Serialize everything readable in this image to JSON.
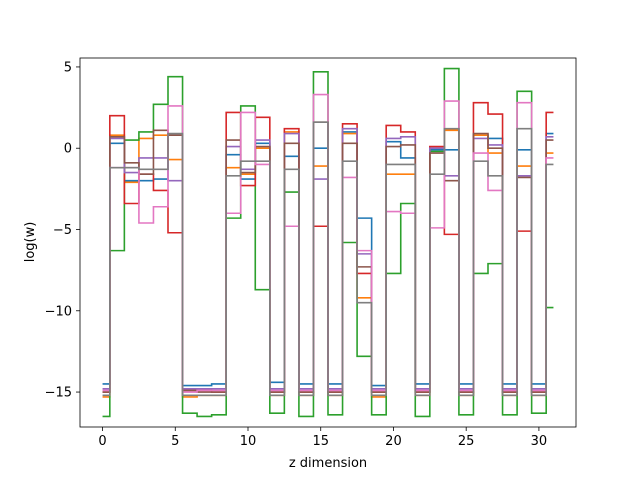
{
  "chart_data": {
    "type": "line",
    "drawstyle": "steps-mid",
    "xlabel": "z dimension",
    "ylabel": "log(w)",
    "xlim": [
      -1.55,
      32.55
    ],
    "ylim": [
      -17.15,
      5.55
    ],
    "xticks": [
      0,
      5,
      10,
      15,
      20,
      25,
      30
    ],
    "xtick_labels": [
      "0",
      "5",
      "10",
      "15",
      "20",
      "25",
      "30"
    ],
    "yticks": [
      5,
      0,
      -5,
      -10,
      -15
    ],
    "ytick_labels": [
      "5",
      "0",
      "−5",
      "−10",
      "−15"
    ],
    "grid": false,
    "x": [
      0,
      1,
      2,
      3,
      4,
      5,
      6,
      7,
      8,
      9,
      10,
      11,
      12,
      13,
      14,
      15,
      16,
      17,
      18,
      19,
      20,
      21,
      22,
      23,
      24,
      25,
      26,
      27,
      28,
      29,
      30,
      31
    ],
    "series": [
      {
        "color": "#1f77b4",
        "values": [
          -14.5,
          0.3,
          -2.0,
          -2.0,
          -1.9,
          0.8,
          -14.6,
          -14.6,
          -14.5,
          -0.4,
          -1.9,
          0.3,
          -14.4,
          -0.5,
          -14.5,
          0.0,
          -14.5,
          1.0,
          -4.3,
          -14.6,
          0.4,
          -0.6,
          -14.5,
          -0.1,
          -0.1,
          -14.5,
          0.8,
          0.6,
          -14.5,
          -0.1,
          -14.5,
          0.9
        ]
      },
      {
        "color": "#ff7f0e",
        "values": [
          -15.3,
          0.8,
          -2.1,
          0.6,
          0.8,
          -0.7,
          -15.3,
          -15.2,
          -15.2,
          -1.2,
          -1.6,
          0.0,
          -15.2,
          1.0,
          -15.2,
          -1.1,
          -15.2,
          0.9,
          -9.2,
          -15.3,
          -1.6,
          -1.6,
          -15.2,
          0.0,
          1.1,
          -15.2,
          0.8,
          -0.3,
          -15.2,
          -1.1,
          -15.2,
          -0.3
        ]
      },
      {
        "color": "#2ca02c",
        "values": [
          -16.5,
          -6.3,
          0.5,
          1.0,
          2.7,
          4.4,
          -16.3,
          -16.5,
          -16.4,
          -4.3,
          2.6,
          -8.7,
          -16.3,
          -2.7,
          -16.5,
          4.7,
          -16.4,
          -5.8,
          -12.8,
          -16.4,
          -7.7,
          -3.4,
          -16.5,
          -0.2,
          4.9,
          -16.4,
          -7.7,
          -7.1,
          -16.4,
          3.5,
          -16.3,
          -9.8
        ]
      },
      {
        "color": "#d62728",
        "values": [
          -15.0,
          2.0,
          -3.4,
          -1.6,
          -2.6,
          -5.2,
          -14.9,
          -14.9,
          -15.0,
          2.2,
          -2.3,
          1.9,
          -15.0,
          1.2,
          -15.0,
          -4.8,
          -15.0,
          1.5,
          -7.7,
          -15.0,
          1.4,
          1.0,
          -15.0,
          0.1,
          -5.3,
          -15.0,
          2.8,
          2.1,
          -15.0,
          -5.1,
          -15.0,
          2.2
        ]
      },
      {
        "color": "#9467bd",
        "values": [
          -14.8,
          0.6,
          -1.5,
          -0.6,
          -0.6,
          -2.0,
          -14.8,
          -14.8,
          -14.8,
          0.1,
          -1.3,
          0.5,
          -14.8,
          0.9,
          -14.8,
          -1.9,
          -14.8,
          1.2,
          -6.5,
          -14.8,
          0.6,
          0.7,
          -14.8,
          0.0,
          -1.7,
          -14.8,
          0.6,
          0.2,
          -14.8,
          -1.7,
          -14.8,
          0.7
        ]
      },
      {
        "color": "#8c564b",
        "values": [
          -15.0,
          0.7,
          -0.9,
          -1.6,
          1.1,
          0.8,
          -14.9,
          -15.0,
          -15.0,
          0.5,
          -1.5,
          0.1,
          -15.0,
          0.3,
          -15.0,
          1.6,
          -15.0,
          0.3,
          -7.3,
          -15.0,
          0.1,
          0.2,
          -15.0,
          -0.3,
          -2.0,
          -15.0,
          0.9,
          0.0,
          -15.0,
          -1.8,
          -15.0,
          0.5
        ]
      },
      {
        "color": "#e377c2",
        "values": [
          -14.9,
          -1.2,
          -1.2,
          -4.6,
          -3.6,
          2.6,
          -15.0,
          -14.9,
          -14.9,
          -4.0,
          2.2,
          -1.0,
          -14.9,
          -4.8,
          -14.9,
          3.3,
          -14.9,
          -1.8,
          -6.3,
          -14.9,
          -3.9,
          -4.0,
          -14.9,
          -4.9,
          2.9,
          -14.9,
          -0.3,
          -2.6,
          -14.9,
          2.8,
          -14.9,
          -0.6
        ]
      },
      {
        "color": "#7f7f7f",
        "values": [
          -15.2,
          -1.2,
          -1.2,
          -1.3,
          -1.3,
          0.9,
          -15.2,
          -15.2,
          -15.2,
          -1.7,
          -0.8,
          -0.8,
          -15.2,
          -1.3,
          -15.2,
          1.6,
          -15.2,
          -0.8,
          -9.5,
          -15.2,
          -1.0,
          -1.0,
          -15.2,
          -1.6,
          1.2,
          -15.2,
          -0.8,
          -1.7,
          -15.2,
          1.2,
          -15.2,
          -1.0
        ]
      }
    ]
  }
}
